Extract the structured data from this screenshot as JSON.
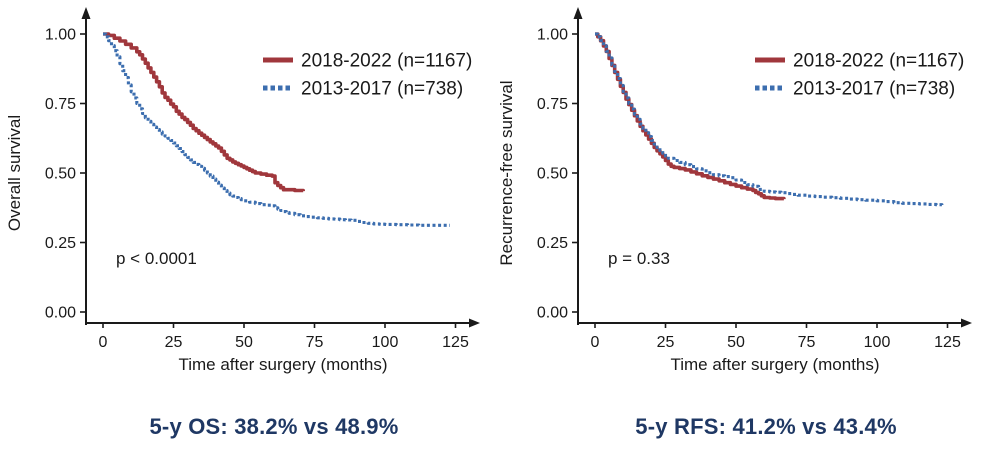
{
  "figure": {
    "colors": {
      "series_red": "#A0373C",
      "series_blue": "#3C6EAF",
      "caption": "#1F3864",
      "axis": "#1A1A1A"
    }
  },
  "chart_data": [
    {
      "type": "line",
      "subtype": "kaplan-meier-step",
      "title": "",
      "ylabel": "Overall survival",
      "xlabel": "Time after surgery (months)",
      "pvalue": "p < 0.0001",
      "caption": "5-y OS: 38.2% vs 48.9%",
      "xlim": [
        0,
        135
      ],
      "ylim": [
        0,
        1.0
      ],
      "grid": false,
      "legend_position": "top-right",
      "xticks": [
        0,
        25,
        50,
        75,
        100,
        125
      ],
      "yticks": [
        "1.00",
        "0.75",
        "0.50",
        "0.25",
        "0.00"
      ],
      "series": [
        {
          "name": "2018-2022 (n=1167)",
          "color": "#A0373C",
          "style": "solid",
          "five_year_rate": "48.9%",
          "points": [
            [
              0,
              1.0
            ],
            [
              2,
              0.995
            ],
            [
              4,
              0.985
            ],
            [
              6,
              0.975
            ],
            [
              8,
              0.963
            ],
            [
              10,
              0.95
            ],
            [
              12,
              0.936
            ],
            [
              13,
              0.925
            ],
            [
              14,
              0.91
            ],
            [
              15,
              0.895
            ],
            [
              16,
              0.878
            ],
            [
              17,
              0.862
            ],
            [
              18,
              0.845
            ],
            [
              19,
              0.828
            ],
            [
              20,
              0.81
            ],
            [
              21,
              0.788
            ],
            [
              22,
              0.772
            ],
            [
              23,
              0.762
            ],
            [
              24,
              0.748
            ],
            [
              25,
              0.738
            ],
            [
              26,
              0.722
            ],
            [
              27,
              0.712
            ],
            [
              28,
              0.7
            ],
            [
              29,
              0.692
            ],
            [
              30,
              0.682
            ],
            [
              31,
              0.672
            ],
            [
              32,
              0.66
            ],
            [
              33,
              0.652
            ],
            [
              34,
              0.643
            ],
            [
              35,
              0.636
            ],
            [
              36,
              0.628
            ],
            [
              37,
              0.62
            ],
            [
              38,
              0.612
            ],
            [
              39,
              0.605
            ],
            [
              40,
              0.597
            ],
            [
              41,
              0.59
            ],
            [
              42,
              0.578
            ],
            [
              43,
              0.565
            ],
            [
              44,
              0.553
            ],
            [
              45,
              0.547
            ],
            [
              46,
              0.54
            ],
            [
              47,
              0.535
            ],
            [
              48,
              0.53
            ],
            [
              49,
              0.525
            ],
            [
              50,
              0.52
            ],
            [
              51,
              0.515
            ],
            [
              52,
              0.51
            ],
            [
              53,
              0.505
            ],
            [
              54,
              0.5
            ],
            [
              56,
              0.496
            ],
            [
              58,
              0.492
            ],
            [
              60,
              0.489
            ],
            [
              61,
              0.465
            ],
            [
              62,
              0.455
            ],
            [
              63,
              0.447
            ],
            [
              64,
              0.44
            ],
            [
              67,
              0.44
            ],
            [
              68,
              0.437
            ],
            [
              71,
              0.435
            ]
          ]
        },
        {
          "name": "2013-2017 (n=738)",
          "color": "#3C6EAF",
          "style": "dotted",
          "five_year_rate": "38.2%",
          "points": [
            [
              0,
              1.0
            ],
            [
              1,
              0.99
            ],
            [
              2,
              0.976
            ],
            [
              3,
              0.958
            ],
            [
              4,
              0.94
            ],
            [
              5,
              0.918
            ],
            [
              6,
              0.893
            ],
            [
              7,
              0.868
            ],
            [
              8,
              0.843
            ],
            [
              9,
              0.817
            ],
            [
              10,
              0.792
            ],
            [
              11,
              0.77
            ],
            [
              12,
              0.75
            ],
            [
              13,
              0.731
            ],
            [
              14,
              0.714
            ],
            [
              15,
              0.699
            ],
            [
              16,
              0.686
            ],
            [
              17,
              0.675
            ],
            [
              18,
              0.665
            ],
            [
              19,
              0.656
            ],
            [
              20,
              0.648
            ],
            [
              21,
              0.64
            ],
            [
              22,
              0.633
            ],
            [
              23,
              0.625
            ],
            [
              24,
              0.617
            ],
            [
              25,
              0.608
            ],
            [
              26,
              0.598
            ],
            [
              27,
              0.588
            ],
            [
              28,
              0.577
            ],
            [
              29,
              0.566
            ],
            [
              30,
              0.556
            ],
            [
              31,
              0.547
            ],
            [
              32,
              0.538
            ],
            [
              33,
              0.531
            ],
            [
              34,
              0.524
            ],
            [
              35,
              0.517
            ],
            [
              36,
              0.51
            ],
            [
              37,
              0.5
            ],
            [
              38,
              0.489
            ],
            [
              39,
              0.478
            ],
            [
              40,
              0.467
            ],
            [
              41,
              0.456
            ],
            [
              42,
              0.446
            ],
            [
              43,
              0.437
            ],
            [
              44,
              0.428
            ],
            [
              45,
              0.422
            ],
            [
              46,
              0.417
            ],
            [
              47,
              0.412
            ],
            [
              48,
              0.408
            ],
            [
              49,
              0.404
            ],
            [
              50,
              0.4
            ],
            [
              52,
              0.395
            ],
            [
              54,
              0.39
            ],
            [
              56,
              0.386
            ],
            [
              58,
              0.384
            ],
            [
              60,
              0.382
            ],
            [
              61,
              0.375
            ],
            [
              62,
              0.37
            ],
            [
              63,
              0.365
            ],
            [
              64,
              0.361
            ],
            [
              65,
              0.358
            ],
            [
              66,
              0.355
            ],
            [
              68,
              0.35
            ],
            [
              70,
              0.346
            ],
            [
              72,
              0.343
            ],
            [
              74,
              0.341
            ],
            [
              76,
              0.339
            ],
            [
              78,
              0.337
            ],
            [
              80,
              0.335
            ],
            [
              82,
              0.334
            ],
            [
              84,
              0.332
            ],
            [
              86,
              0.331
            ],
            [
              88,
              0.33
            ],
            [
              90,
              0.326
            ],
            [
              92,
              0.322
            ],
            [
              94,
              0.319
            ],
            [
              96,
              0.317
            ],
            [
              98,
              0.316
            ],
            [
              100,
              0.315
            ],
            [
              104,
              0.314
            ],
            [
              108,
              0.313
            ],
            [
              112,
              0.312
            ],
            [
              116,
              0.312
            ],
            [
              120,
              0.312
            ],
            [
              123,
              0.312
            ]
          ]
        }
      ]
    },
    {
      "type": "line",
      "subtype": "kaplan-meier-step",
      "title": "",
      "ylabel": "Recurrence-free survival",
      "xlabel": "Time after surgery (months)",
      "pvalue": "p = 0.33",
      "caption": "5-y RFS: 41.2% vs 43.4%",
      "xlim": [
        0,
        135
      ],
      "ylim": [
        0,
        1.0
      ],
      "grid": false,
      "legend_position": "top-right",
      "xticks": [
        0,
        25,
        50,
        75,
        100,
        125
      ],
      "yticks": [
        "1.00",
        "0.75",
        "0.50",
        "0.25",
        "0.00"
      ],
      "series": [
        {
          "name": "2018-2022 (n=1167)",
          "color": "#A0373C",
          "style": "solid",
          "five_year_rate": "41.2%",
          "points": [
            [
              0,
              1.0
            ],
            [
              1,
              0.99
            ],
            [
              2,
              0.976
            ],
            [
              3,
              0.957
            ],
            [
              4,
              0.937
            ],
            [
              5,
              0.912
            ],
            [
              6,
              0.887
            ],
            [
              7,
              0.862
            ],
            [
              8,
              0.837
            ],
            [
              9,
              0.812
            ],
            [
              10,
              0.79
            ],
            [
              11,
              0.766
            ],
            [
              12,
              0.746
            ],
            [
              13,
              0.726
            ],
            [
              14,
              0.706
            ],
            [
              15,
              0.687
            ],
            [
              16,
              0.668
            ],
            [
              17,
              0.652
            ],
            [
              18,
              0.637
            ],
            [
              19,
              0.622
            ],
            [
              20,
              0.607
            ],
            [
              21,
              0.592
            ],
            [
              22,
              0.58
            ],
            [
              23,
              0.569
            ],
            [
              24,
              0.558
            ],
            [
              25,
              0.545
            ],
            [
              26,
              0.532
            ],
            [
              27,
              0.524
            ],
            [
              28,
              0.52
            ],
            [
              30,
              0.516
            ],
            [
              32,
              0.511
            ],
            [
              34,
              0.504
            ],
            [
              36,
              0.497
            ],
            [
              38,
              0.49
            ],
            [
              40,
              0.484
            ],
            [
              42,
              0.478
            ],
            [
              44,
              0.472
            ],
            [
              46,
              0.465
            ],
            [
              48,
              0.459
            ],
            [
              50,
              0.453
            ],
            [
              52,
              0.447
            ],
            [
              54,
              0.442
            ],
            [
              56,
              0.437
            ],
            [
              57,
              0.43
            ],
            [
              58,
              0.425
            ],
            [
              59,
              0.418
            ],
            [
              60,
              0.412
            ],
            [
              62,
              0.41
            ],
            [
              64,
              0.408
            ],
            [
              67,
              0.406
            ]
          ]
        },
        {
          "name": "2013-2017 (n=738)",
          "color": "#3C6EAF",
          "style": "dotted",
          "five_year_rate": "43.4%",
          "points": [
            [
              0,
              1.0
            ],
            [
              1,
              0.99
            ],
            [
              2,
              0.977
            ],
            [
              3,
              0.958
            ],
            [
              4,
              0.938
            ],
            [
              5,
              0.914
            ],
            [
              6,
              0.89
            ],
            [
              7,
              0.865
            ],
            [
              8,
              0.84
            ],
            [
              9,
              0.815
            ],
            [
              10,
              0.793
            ],
            [
              11,
              0.77
            ],
            [
              12,
              0.75
            ],
            [
              13,
              0.73
            ],
            [
              14,
              0.711
            ],
            [
              15,
              0.693
            ],
            [
              16,
              0.676
            ],
            [
              17,
              0.66
            ],
            [
              18,
              0.645
            ],
            [
              19,
              0.631
            ],
            [
              20,
              0.617
            ],
            [
              21,
              0.604
            ],
            [
              22,
              0.592
            ],
            [
              23,
              0.581
            ],
            [
              24,
              0.571
            ],
            [
              25,
              0.561
            ],
            [
              26,
              0.553
            ],
            [
              28,
              0.545
            ],
            [
              30,
              0.538
            ],
            [
              32,
              0.53
            ],
            [
              34,
              0.523
            ],
            [
              36,
              0.515
            ],
            [
              38,
              0.508
            ],
            [
              40,
              0.501
            ],
            [
              42,
              0.494
            ],
            [
              44,
              0.49
            ],
            [
              46,
              0.487
            ],
            [
              48,
              0.483
            ],
            [
              50,
              0.475
            ],
            [
              52,
              0.466
            ],
            [
              54,
              0.458
            ],
            [
              56,
              0.452
            ],
            [
              58,
              0.441
            ],
            [
              60,
              0.434
            ],
            [
              62,
              0.432
            ],
            [
              64,
              0.431
            ],
            [
              66,
              0.429
            ],
            [
              68,
              0.426
            ],
            [
              70,
              0.423
            ],
            [
              72,
              0.42
            ],
            [
              75,
              0.417
            ],
            [
              78,
              0.415
            ],
            [
              81,
              0.413
            ],
            [
              84,
              0.411
            ],
            [
              87,
              0.409
            ],
            [
              90,
              0.406
            ],
            [
              93,
              0.404
            ],
            [
              96,
              0.402
            ],
            [
              100,
              0.4
            ],
            [
              103,
              0.397
            ],
            [
              106,
              0.393
            ],
            [
              109,
              0.391
            ],
            [
              112,
              0.39
            ],
            [
              115,
              0.389
            ],
            [
              118,
              0.387
            ],
            [
              121,
              0.386
            ],
            [
              123,
              0.385
            ]
          ]
        }
      ]
    }
  ]
}
